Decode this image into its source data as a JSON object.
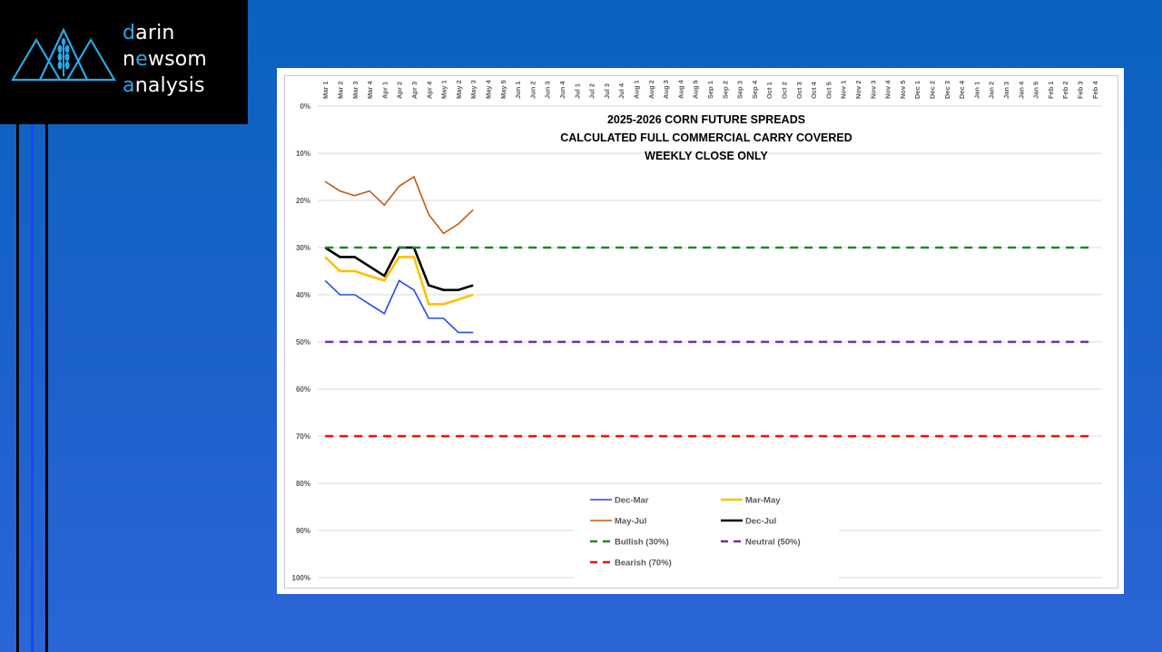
{
  "logo": {
    "line1": {
      "accent": "d",
      "rest": "arin"
    },
    "line2": {
      "pre": "n",
      "accent": "e",
      "mid": "ws",
      "rest": "om"
    },
    "line3": {
      "accent": "a",
      "rest": "nalysis"
    }
  },
  "colors": {
    "background": "#1e62cc",
    "logo_accent": "#2aa8e8",
    "sidebar_lines": [
      "#000000",
      "#1a44ff",
      "#000000"
    ]
  },
  "chart_data": {
    "type": "line",
    "title_lines": [
      "2025-2026 CORN FUTURE SPREADS",
      "CALCULATED FULL COMMERCIAL CARRY COVERED",
      "WEEKLY CLOSE ONLY"
    ],
    "x_categories": [
      "Mar 1",
      "Mar 2",
      "Mar 3",
      "Mar 4",
      "Apr 1",
      "Apr 2",
      "Apr 3",
      "Apr 4",
      "May 1",
      "May 2",
      "May 3",
      "May 4",
      "May 5",
      "Jun 1",
      "Jun 2",
      "Jun 3",
      "Jun 4",
      "Jul 1",
      "Jul 2",
      "Jul 3",
      "Jul 4",
      "Aug 1",
      "Aug 2",
      "Aug 3",
      "Aug 4",
      "Aug 5",
      "Sep 1",
      "Sep 2",
      "Sep 3",
      "Sep 4",
      "Oct 1",
      "Oct 2",
      "Oct 3",
      "Oct 4",
      "Oct 5",
      "Nov 1",
      "Nov 2",
      "Nov 3",
      "Nov 4",
      "Nov 5",
      "Dec 1",
      "Dec 2",
      "Dec 3",
      "Dec 4",
      "Jan 1",
      "Jan 2",
      "Jan 3",
      "Jan 4",
      "Jan 5",
      "Feb 1",
      "Feb 2",
      "Feb 3",
      "Feb 4"
    ],
    "y_ticks": [
      "0%",
      "10%",
      "20%",
      "30%",
      "40%",
      "50%",
      "60%",
      "70%",
      "80%",
      "90%",
      "100%"
    ],
    "y_reversed": true,
    "ylim": [
      0,
      100
    ],
    "grid": "horizontal",
    "series": [
      {
        "name": "Dec-Mar",
        "color": "#1f4ee8",
        "width": 1.6,
        "dash": false,
        "values": [
          37,
          40,
          40,
          42,
          44,
          37,
          39,
          45,
          45,
          48,
          48
        ]
      },
      {
        "name": "Mar-May",
        "color": "#ffc000",
        "width": 2.6,
        "dash": false,
        "values": [
          32,
          35,
          35,
          36,
          37,
          32,
          32,
          42,
          42,
          41,
          40
        ]
      },
      {
        "name": "May-Jul",
        "color": "#c55a11",
        "width": 1.6,
        "dash": false,
        "values": [
          16,
          18,
          19,
          18,
          21,
          17,
          15,
          23,
          27,
          25,
          22
        ]
      },
      {
        "name": "Dec-Jul",
        "color": "#000000",
        "width": 2.6,
        "dash": false,
        "values": [
          30,
          32,
          32,
          34,
          36,
          30,
          30,
          38,
          39,
          39,
          38
        ]
      },
      {
        "name": "Bullish (30%)",
        "color": "#1a8a1a",
        "width": 2.6,
        "dash": true,
        "constant": 30
      },
      {
        "name": "Neutral (50%)",
        "color": "#7030a0",
        "width": 2.6,
        "dash": true,
        "constant": 50
      },
      {
        "name": "Bearish (70%)",
        "color": "#ff0000",
        "width": 2.6,
        "dash": true,
        "constant": 70
      }
    ],
    "legend_position": "bottom-center"
  }
}
